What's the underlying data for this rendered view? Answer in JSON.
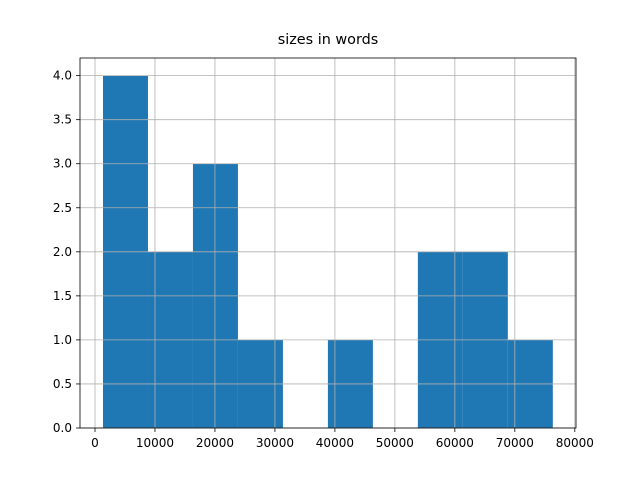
{
  "chart_data": {
    "type": "histogram",
    "title": "sizes in words",
    "bins": [
      1333,
      8833,
      16333,
      23833,
      31333,
      38833,
      46333,
      53833,
      61333,
      68833,
      76333
    ],
    "values": [
      4,
      2,
      3,
      1,
      0,
      1,
      0,
      2,
      2,
      1
    ],
    "color": "#1f77b4",
    "xlim": [
      -2500,
      80200
    ],
    "xticks": [
      0,
      10000,
      20000,
      30000,
      40000,
      50000,
      60000,
      70000,
      80000
    ],
    "ylim": [
      0,
      4.2
    ],
    "yticks": [
      {
        "value": 0,
        "label": "0.0"
      },
      {
        "value": 0.5,
        "label": "0.5"
      },
      {
        "value": 1,
        "label": "1.0"
      },
      {
        "value": 1.5,
        "label": "1.5"
      },
      {
        "value": 2,
        "label": "2.0"
      },
      {
        "value": 2.5,
        "label": "2.5"
      },
      {
        "value": 3,
        "label": "3.0"
      },
      {
        "value": 3.5,
        "label": "3.5"
      },
      {
        "value": 4,
        "label": "4.0"
      }
    ],
    "grid": true
  }
}
